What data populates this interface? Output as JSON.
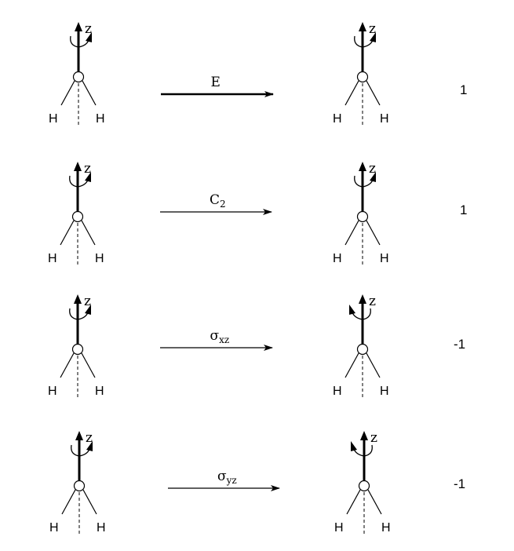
{
  "atoms": {
    "hydrogen": "H",
    "axis": "z"
  },
  "rows": [
    {
      "op_main": "E",
      "op_sub": "",
      "character": "1",
      "rotation_result": "same"
    },
    {
      "op_main": "C",
      "op_sub": "2",
      "character": "1",
      "rotation_result": "same"
    },
    {
      "op_main": "σ",
      "op_sub": "xz",
      "character": "-1",
      "rotation_result": "reversed"
    },
    {
      "op_main": "σ",
      "op_sub": "yz",
      "character": "-1",
      "rotation_result": "reversed"
    }
  ]
}
